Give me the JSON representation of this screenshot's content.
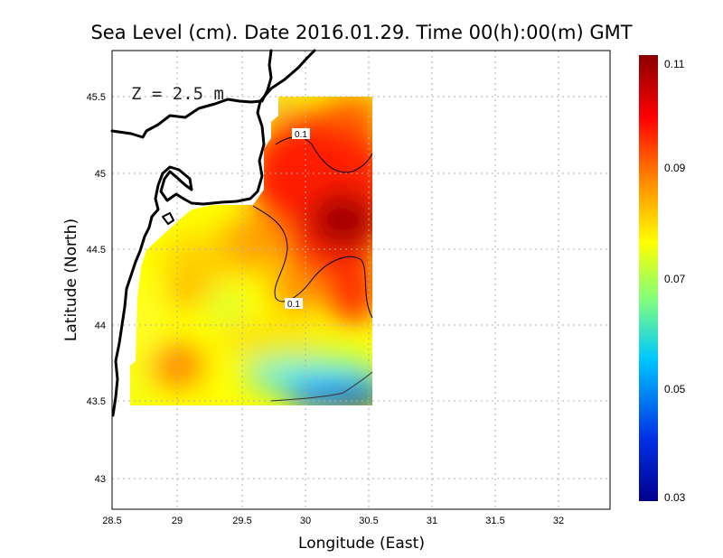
{
  "title": "Sea Level (cm). Date 2016.01.29. Time 00(h):00(m) GMT",
  "xlabel": "Longitude (East)",
  "ylabel": "Latitude (North)",
  "depth_label": "Z = 2.5 m",
  "x_ticks": [
    "28.5",
    "29",
    "29.5",
    "30",
    "30.5",
    "31",
    "31.5",
    "32"
  ],
  "y_ticks": [
    "43",
    "43.5",
    "44",
    "44.5",
    "45",
    "45.5"
  ],
  "colorbar": {
    "ticks": [
      "0.03",
      "0.05",
      "0.07",
      "0.09",
      "0.11"
    ],
    "min": 0.03,
    "max": 0.11,
    "colors": [
      "#00008c",
      "#0030e6",
      "#00c8ff",
      "#7fff7f",
      "#ffff00",
      "#ff8800",
      "#ff0000",
      "#8b0000"
    ]
  },
  "contour_labels": [
    "0.1",
    "0.1"
  ],
  "chart_data": {
    "type": "heatmap",
    "title": "Sea Level (cm). Date 2016.01.29. Time 00(h):00(m) GMT",
    "xlabel": "Longitude (East)",
    "ylabel": "Latitude (North)",
    "xlim": [
      28.5,
      32.4
    ],
    "ylim": [
      42.8,
      45.8
    ],
    "grid": true,
    "colorbar_range": [
      0.03,
      0.11
    ],
    "contour_levels": [
      0.1
    ],
    "data_extent": {
      "lon": [
        28.64,
        30.53
      ],
      "lat": [
        43.48,
        45.5
      ]
    },
    "annotation": "Z = 2.5 m",
    "legend_placement": "right"
  }
}
